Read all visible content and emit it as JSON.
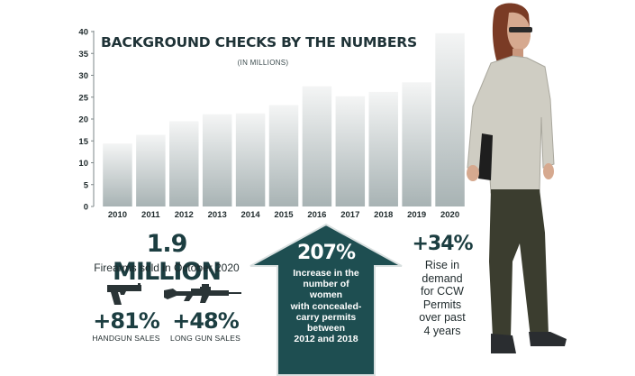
{
  "chart_data": {
    "type": "bar",
    "title": "BACKGROUND CHECKS BY THE NUMBERS",
    "subtitle": "(IN MILLIONS)",
    "categories": [
      "2010",
      "2011",
      "2012",
      "2013",
      "2014",
      "2015",
      "2016",
      "2017",
      "2018",
      "2019",
      "2020"
    ],
    "values": [
      14.4,
      16.4,
      19.5,
      21.1,
      21.3,
      23.2,
      27.5,
      25.2,
      26.2,
      28.4,
      39.6
    ],
    "yticks": [
      "0",
      "5",
      "10",
      "15",
      "20",
      "25",
      "30",
      "35",
      "40"
    ],
    "ylim": [
      0,
      40
    ],
    "xlabel": "",
    "ylabel": "",
    "grid": false,
    "bar_gradient": [
      "#f4f5f5",
      "#a8b3b4"
    ]
  },
  "stats": {
    "firearms_sold": "1.9 MILLION",
    "firearms_caption": "Firearms sold in October 2020",
    "handgun_pct": "+81%",
    "handgun_caption": "HANDGUN SALES",
    "longgun_pct": "+48%",
    "longgun_caption": "LONG GUN SALES",
    "women_pct": "207%",
    "women_lines": [
      "Increase in the",
      "number of women",
      "with concealed-",
      "carry permits",
      "between",
      "2012 and 2018"
    ],
    "ccw_pct": "+34%",
    "ccw_lines": [
      "Rise in",
      "demand",
      "for CCW",
      "Permits",
      "over past",
      "4 years"
    ]
  },
  "icons": {
    "handgun": "handgun-icon",
    "long_gun": "rifle-icon"
  },
  "colors": {
    "dark_teal": "#1c3e41",
    "arrow_fill": "#1e4e51"
  }
}
